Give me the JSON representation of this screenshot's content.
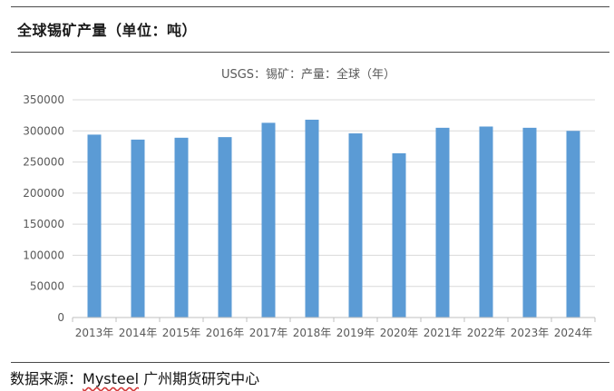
{
  "header": {
    "title": "全球锡矿产量（单位：吨）"
  },
  "footer": {
    "source_prefix": "数据来源：",
    "source_brand": "Mysteel",
    "source_org": " 广州期货研究中心"
  },
  "colors": {
    "bar": "#5b9bd5",
    "grid": "#d9d9d9",
    "axis_text": "#595959",
    "title_text": "#595959"
  },
  "chart_data": {
    "type": "bar",
    "title": "USGS：锡矿：产量：全球（年）",
    "categories": [
      "2013年",
      "2014年",
      "2015年",
      "2016年",
      "2017年",
      "2018年",
      "2019年",
      "2020年",
      "2021年",
      "2022年",
      "2023年",
      "2024年"
    ],
    "values": [
      294000,
      286000,
      289000,
      290000,
      313000,
      318000,
      296000,
      264000,
      305000,
      307000,
      305000,
      300000
    ],
    "ylim": [
      0,
      350000
    ],
    "yticks": [
      "0",
      "50000",
      "100000",
      "150000",
      "200000",
      "250000",
      "300000",
      "350000"
    ],
    "grid": true,
    "legend": "none"
  }
}
